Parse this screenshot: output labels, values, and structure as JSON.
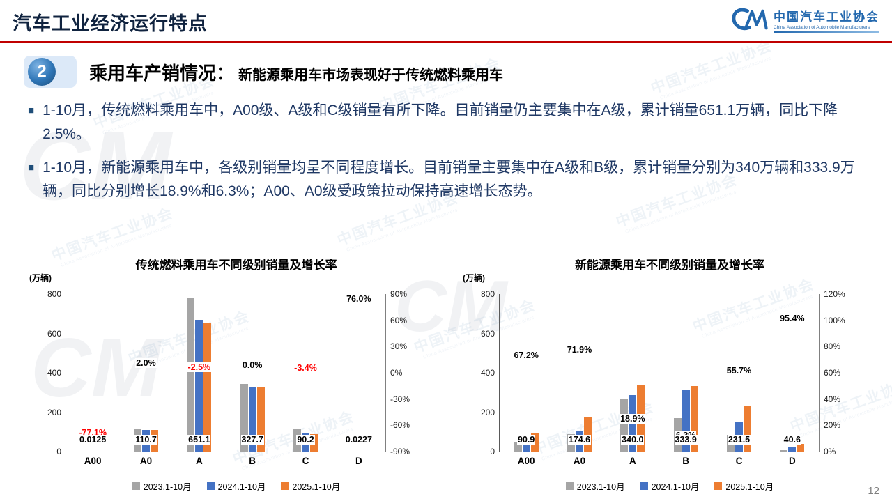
{
  "slide": {
    "title": "汽车工业经济运行特点",
    "page_number": "12"
  },
  "logo": {
    "cn": "中国汽车工业协会",
    "en": "China Association of Automobile Manufacturers"
  },
  "watermark": {
    "cn": "中国汽车工业协会",
    "en": "China Association of Automobile Manufacturers",
    "mark": "CM"
  },
  "section": {
    "badge": "2",
    "heading": "乘用车产销情况：",
    "subheading": "新能源乘用车市场表现好于传统燃料乘用车"
  },
  "bullet_marker": "■",
  "bullets": [
    "1-10月，传统燃料乘用车中，A00级、A级和C级销量有所下降。目前销量仍主要集中在A级，累计销量651.1万辆，同比下降2.5%。",
    "1-10月，新能源乘用车中，各级别销量均呈不同程度增长。目前销量主要集中在A级和B级，累计销量分别为340万辆和333.9万辆，同比分别增长18.9%和6.3%；A00、A0级受政策拉动保持高速增长态势。"
  ],
  "colors": {
    "series": [
      "#A5A5A5",
      "#4472C4",
      "#ED7D31"
    ],
    "negative_label": "#FF0000",
    "accent_red": "#C00000",
    "accent_blue": "#2368AE"
  },
  "chart_data": [
    {
      "type": "bar",
      "title": "传统燃料乘用车不同级别销量及增长率",
      "unit_label": "(万辆)",
      "categories": [
        "A00",
        "A0",
        "A",
        "B",
        "C",
        "D"
      ],
      "series": [
        {
          "name": "2023.1-10月",
          "values": [
            1.4,
            112,
            783,
            345,
            115,
            0.01
          ]
        },
        {
          "name": "2024.1-10月",
          "values": [
            0.055,
            108.5,
            667.8,
            327.7,
            93.4,
            0.0129
          ]
        },
        {
          "name": "2025.1-10月",
          "values": [
            0.0125,
            110.7,
            651.1,
            327.7,
            90.2,
            0.0227
          ]
        }
      ],
      "value_labels": [
        "0.0125",
        "110.7",
        "651.1",
        "327.7",
        "90.2",
        "0.0227"
      ],
      "growth": [
        {
          "label": "-77.1%",
          "value": -77.1,
          "negative": true
        },
        {
          "label": "2.0%",
          "value": 2.0,
          "negative": false
        },
        {
          "label": "-2.5%",
          "value": -2.5,
          "negative": true
        },
        {
          "label": "0.0%",
          "value": 0.0,
          "negative": false
        },
        {
          "label": "-3.4%",
          "value": -3.4,
          "negative": true
        },
        {
          "label": "76.0%",
          "value": 76.0,
          "negative": false
        }
      ],
      "left_axis": {
        "min": 0,
        "max": 800,
        "ticks": [
          "800",
          "600",
          "400",
          "200",
          "0"
        ]
      },
      "right_axis": {
        "min": -90,
        "max": 90,
        "ticks": [
          "90%",
          "60%",
          "30%",
          "0%",
          "-30%",
          "-60%",
          "-90%"
        ]
      },
      "grid": false,
      "legend_position": "bottom"
    },
    {
      "type": "bar",
      "title": "新能源乘用车不同级别销量及增长率",
      "unit_label": "(万辆)",
      "categories": [
        "A00",
        "A0",
        "A",
        "B",
        "C",
        "D"
      ],
      "series": [
        {
          "name": "2023.1-10月",
          "values": [
            45,
            88,
            266,
            170,
            86,
            6
          ]
        },
        {
          "name": "2024.1-10月",
          "values": [
            54.4,
            101.6,
            286.0,
            314.1,
            148.7,
            20.8
          ]
        },
        {
          "name": "2025.1-10月",
          "values": [
            90.9,
            174.6,
            340.0,
            333.9,
            231.5,
            40.6
          ]
        }
      ],
      "value_labels": [
        "90.9",
        "174.6",
        "340.0",
        "333.9",
        "231.5",
        "40.6"
      ],
      "growth": [
        {
          "label": "67.2%",
          "value": 67.2,
          "negative": false
        },
        {
          "label": "71.9%",
          "value": 71.9,
          "negative": false
        },
        {
          "label": "18.9%",
          "value": 18.9,
          "negative": false
        },
        {
          "label": "6.3%",
          "value": 6.3,
          "negative": false
        },
        {
          "label": "55.7%",
          "value": 55.7,
          "negative": false
        },
        {
          "label": "95.4%",
          "value": 95.4,
          "negative": false
        }
      ],
      "left_axis": {
        "min": 0,
        "max": 800,
        "ticks": [
          "800",
          "600",
          "400",
          "200",
          "0"
        ]
      },
      "right_axis": {
        "min": 0,
        "max": 120,
        "ticks": [
          "120%",
          "100%",
          "80%",
          "60%",
          "40%",
          "20%",
          "0%"
        ]
      },
      "grid": false,
      "legend_position": "bottom"
    }
  ]
}
